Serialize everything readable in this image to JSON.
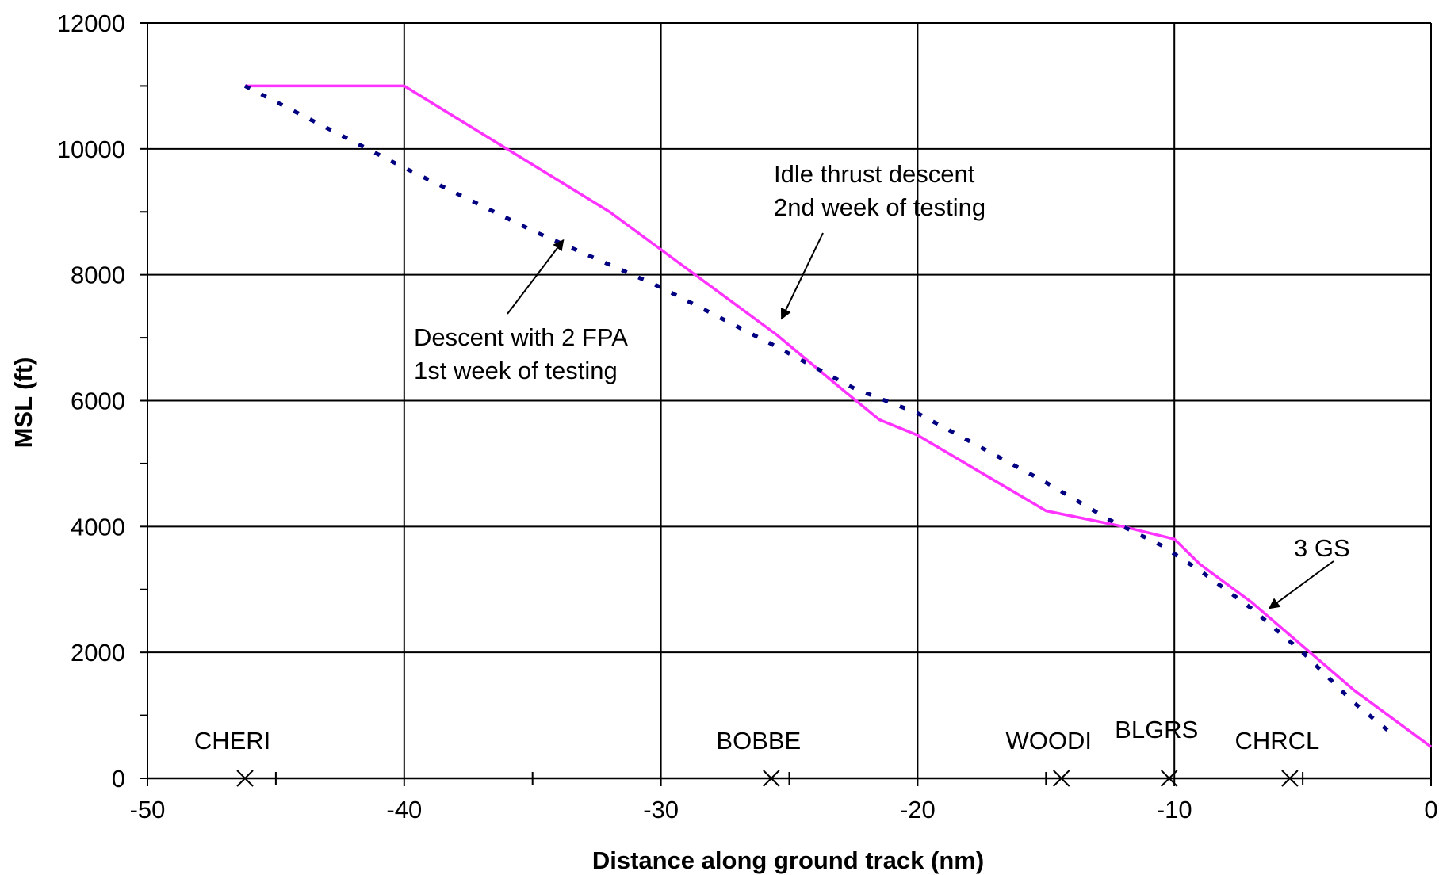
{
  "chart_data": {
    "type": "line",
    "title": "",
    "xlabel": "Distance along ground track (nm)",
    "ylabel": "MSL (ft)",
    "xlim": [
      -50,
      0
    ],
    "ylim": [
      0,
      12000
    ],
    "x_ticks": [
      -50,
      -40,
      -30,
      -20,
      -10,
      0
    ],
    "y_ticks": [
      0,
      2000,
      4000,
      6000,
      8000,
      10000,
      12000
    ],
    "grid": true,
    "colors": {
      "idle": "#ff33ff",
      "fpa": "#000080",
      "grid": "#000000"
    },
    "series": [
      {
        "key": "idle",
        "points": [
          [
            -46.2,
            11000
          ],
          [
            -40,
            11000
          ],
          [
            -32,
            9000
          ],
          [
            -28.5,
            7950
          ],
          [
            -25.5,
            7050
          ],
          [
            -23,
            6200
          ],
          [
            -21.5,
            5700
          ],
          [
            -20,
            5450
          ],
          [
            -15,
            4250
          ],
          [
            -12,
            4000
          ],
          [
            -10,
            3800
          ],
          [
            -9,
            3400
          ],
          [
            -7,
            2800
          ],
          [
            -5,
            2100
          ],
          [
            -3,
            1400
          ],
          [
            0,
            500
          ]
        ]
      },
      {
        "key": "fpa",
        "points": [
          [
            -46.2,
            11000
          ],
          [
            -40,
            9700
          ],
          [
            -35,
            8700
          ],
          [
            -30,
            7800
          ],
          [
            -25.7,
            6900
          ],
          [
            -22.5,
            6200
          ],
          [
            -20,
            5800
          ],
          [
            -15,
            4700
          ],
          [
            -12.5,
            4100
          ],
          [
            -10.5,
            3700
          ],
          [
            -9,
            3300
          ],
          [
            -7,
            2700
          ],
          [
            -5,
            2000
          ],
          [
            -3,
            1200
          ],
          [
            -1.5,
            700
          ]
        ]
      }
    ],
    "waypoints": [
      {
        "label": "CHERI",
        "x": -46.2
      },
      {
        "label": "BOBBE",
        "x": -25.7
      },
      {
        "label": "WOODI",
        "x": -14.4
      },
      {
        "label": "BLGRS",
        "x": -10.2
      },
      {
        "label": "CHRCL",
        "x": -5.5
      }
    ],
    "annotations": [
      {
        "lines": [
          "Idle thrust descent",
          "2nd week of testing"
        ],
        "arrow_to": [
          -25.3,
          7300
        ]
      },
      {
        "lines": [
          "Descent with 2 FPA",
          "1st week of testing"
        ],
        "arrow_to": [
          -33.8,
          8550
        ]
      },
      {
        "lines": [
          "3 GS"
        ],
        "arrow_to": [
          -6.3,
          2700
        ]
      }
    ]
  }
}
